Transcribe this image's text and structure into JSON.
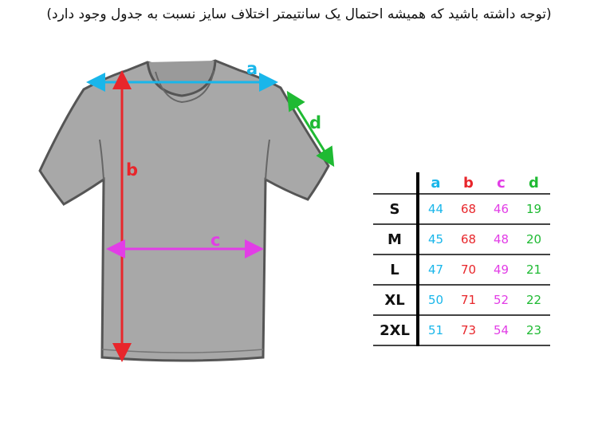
{
  "note": "(توجه داشته باشید که همیشه احتمال یک سانتیمتر اختلاف سایز نسبت به جدول وجود دارد)",
  "colors": {
    "a": "#19b6ea",
    "b": "#e8262b",
    "c": "#e23de6",
    "d": "#1fba33",
    "shirt": "#a8a8a8",
    "outline": "#555555"
  },
  "diagram": {
    "labels": {
      "a": "a",
      "b": "b",
      "c": "c",
      "d": "d"
    }
  },
  "table": {
    "columns": [
      "a",
      "b",
      "c",
      "d"
    ],
    "rows": [
      {
        "size": "S",
        "values": [
          "44",
          "68",
          "46",
          "19"
        ]
      },
      {
        "size": "M",
        "values": [
          "45",
          "68",
          "48",
          "20"
        ]
      },
      {
        "size": "L",
        "values": [
          "47",
          "70",
          "49",
          "21"
        ]
      },
      {
        "size": "XL",
        "values": [
          "50",
          "71",
          "52",
          "22"
        ]
      },
      {
        "size": "2XL",
        "values": [
          "51",
          "73",
          "54",
          "23"
        ]
      }
    ]
  }
}
